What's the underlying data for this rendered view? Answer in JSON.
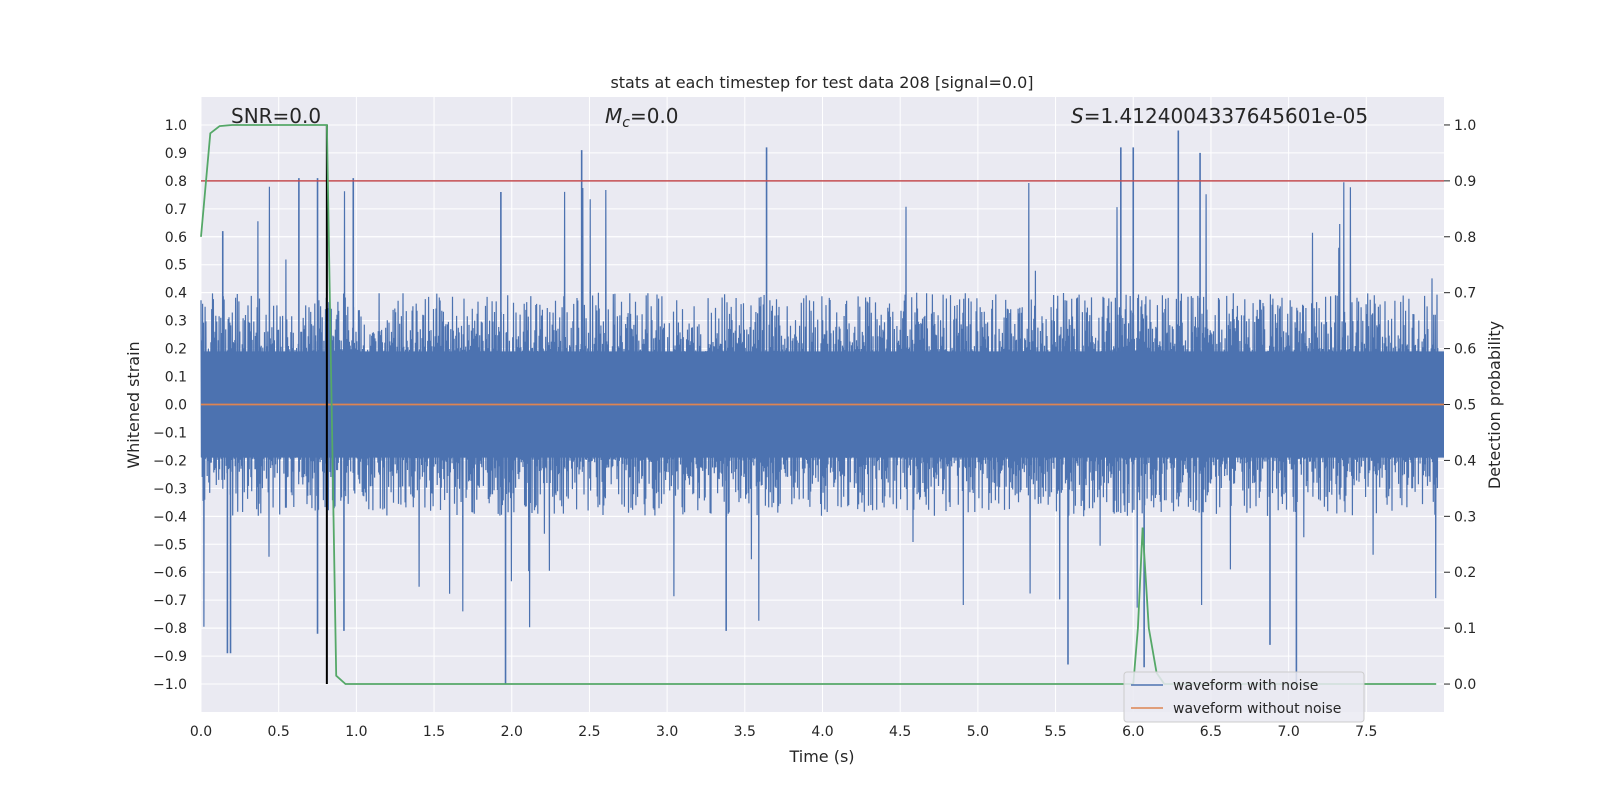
{
  "chart_data": {
    "type": "line",
    "title": "stats at each timestep for test data 208 [signal=0.0]",
    "xlabel": "Time (s)",
    "ylabel_left": "Whitened strain",
    "ylabel_right": "Detection probability",
    "xlim": [
      0.0,
      8.0
    ],
    "ylim_left": [
      -1.1,
      1.1
    ],
    "ylim_right": [
      -0.05,
      1.05
    ],
    "x_ticks": [
      "0.0",
      "0.5",
      "1.0",
      "1.5",
      "2.0",
      "2.5",
      "3.0",
      "3.5",
      "4.0",
      "4.5",
      "5.0",
      "5.5",
      "6.0",
      "6.5",
      "7.0",
      "7.5"
    ],
    "y_ticks_left": [
      "1.0",
      "0.9",
      "0.8",
      "0.7",
      "0.6",
      "0.5",
      "0.4",
      "0.3",
      "0.2",
      "0.1",
      "0.0",
      "−0.1",
      "−0.2",
      "−0.3",
      "−0.4",
      "−0.5",
      "−0.6",
      "−0.7",
      "−0.8",
      "−0.9",
      "−1.0"
    ],
    "y_ticks_right": [
      "1.0",
      "0.9",
      "0.8",
      "0.7",
      "0.6",
      "0.5",
      "0.4",
      "0.3",
      "0.2",
      "0.1",
      "0.0"
    ],
    "grid": true,
    "legend_position": "lower-right",
    "annotations": {
      "snr": "SNR=0.0",
      "mc_symbol": "M",
      "mc_sub": "c",
      "mc_value": "=0.0",
      "s_symbol": "S",
      "s_value": "=1.4124004337645601e-05"
    },
    "series": [
      {
        "name": "waveform with noise",
        "color": "#4c72b0",
        "note": "dense noise roughly within ±0.4 with spikes up to ±1.0",
        "spikes": [
          {
            "x": 0.17,
            "y": -0.89
          },
          {
            "x": 0.19,
            "y": -0.89
          },
          {
            "x": 0.14,
            "y": 0.62
          },
          {
            "x": 0.63,
            "y": 0.81
          },
          {
            "x": 0.75,
            "y": 0.81
          },
          {
            "x": 0.75,
            "y": -0.82
          },
          {
            "x": 0.98,
            "y": 0.81
          },
          {
            "x": 0.92,
            "y": -0.81
          },
          {
            "x": 1.96,
            "y": -1.0
          },
          {
            "x": 1.93,
            "y": 0.76
          },
          {
            "x": 2.45,
            "y": 0.91
          },
          {
            "x": 3.64,
            "y": 0.92
          },
          {
            "x": 3.38,
            "y": -0.81
          },
          {
            "x": 5.58,
            "y": -0.93
          },
          {
            "x": 5.92,
            "y": 0.92
          },
          {
            "x": 6.0,
            "y": 0.92
          },
          {
            "x": 6.29,
            "y": 0.98
          },
          {
            "x": 6.07,
            "y": -0.94
          },
          {
            "x": 6.43,
            "y": 0.9
          },
          {
            "x": 7.05,
            "y": -1.0
          },
          {
            "x": 6.88,
            "y": -0.86
          }
        ]
      },
      {
        "name": "waveform without noise",
        "color": "#dd8452",
        "x": [
          0.0,
          8.0
        ],
        "y": [
          0.0,
          0.0
        ]
      },
      {
        "name": "",
        "axis": "right",
        "color": "#55a868",
        "x": [
          0.0,
          0.06,
          0.12,
          0.2,
          0.4,
          0.6,
          0.8,
          0.81,
          0.87,
          0.93,
          1.0,
          2.0,
          3.0,
          4.0,
          5.0,
          5.5,
          6.0,
          6.03,
          6.06,
          6.1,
          6.15,
          6.2,
          6.5,
          7.0,
          7.5,
          7.95
        ],
        "y": [
          0.8,
          0.985,
          0.998,
          1.0,
          1.0,
          1.0,
          1.0,
          1.0,
          0.015,
          0.0,
          0.0,
          0.0,
          0.0,
          0.0,
          0.0,
          0.0,
          0.0,
          0.1,
          0.28,
          0.1,
          0.02,
          0.0,
          0.0,
          0.0,
          0.0,
          0.0
        ]
      }
    ],
    "threshold": {
      "axis": "right",
      "value": 0.9,
      "color": "#c44e52"
    },
    "marker_line": {
      "x": 0.81,
      "y_range": [
        -1.0,
        1.0
      ],
      "color": "#000000"
    }
  }
}
